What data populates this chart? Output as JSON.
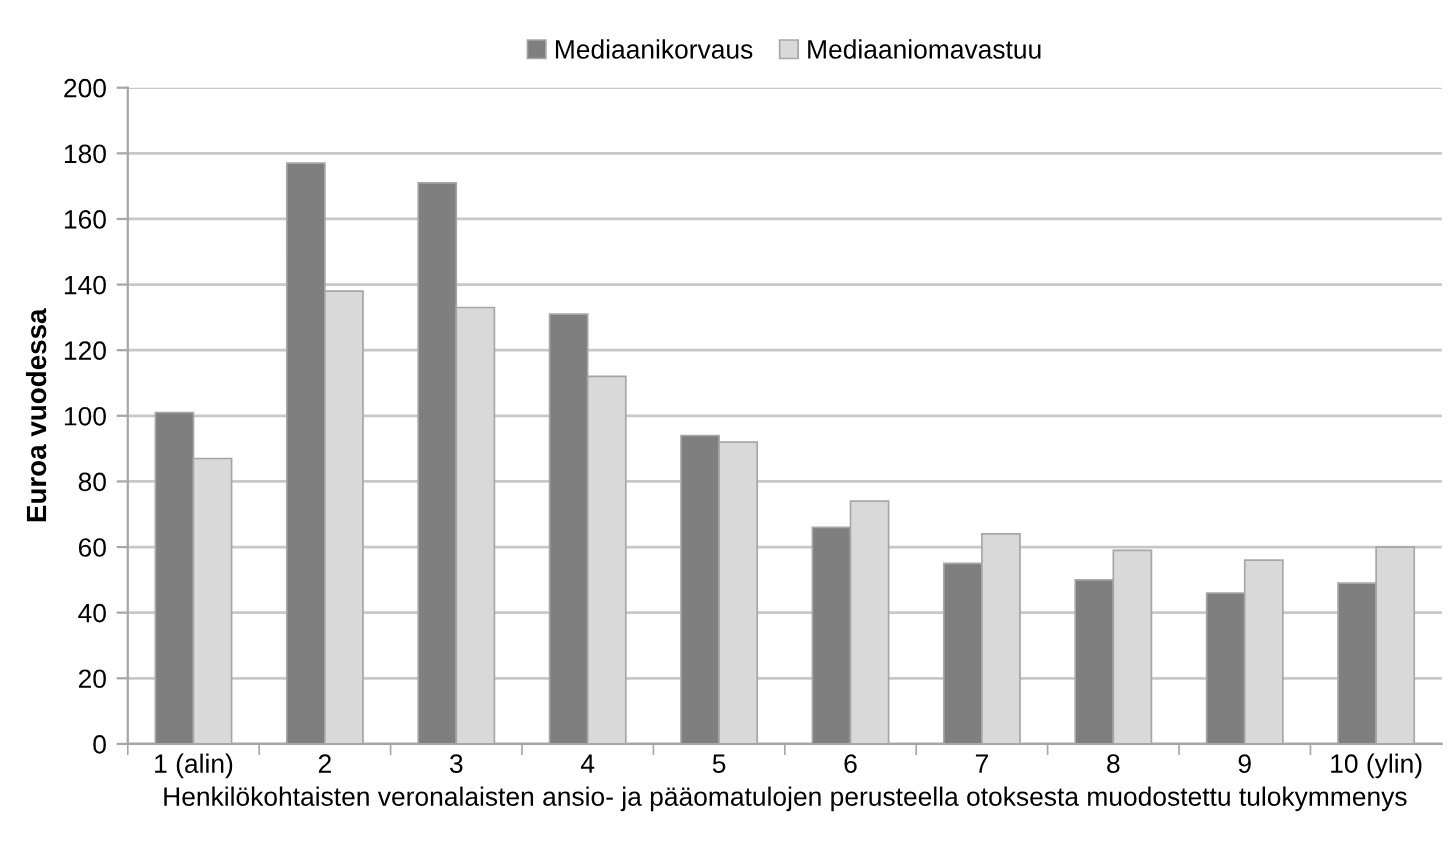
{
  "chart_data": {
    "type": "bar",
    "xlabel": "Henkilökohtaisten veronalaisten ansio- ja pääomatulojen perusteella otoksesta muodostettu tulokymmenys",
    "ylabel": "Euroa vuodessa",
    "categories": [
      "1 (alin)",
      "2",
      "3",
      "4",
      "5",
      "6",
      "7",
      "8",
      "9",
      "10 (ylin)"
    ],
    "series": [
      {
        "name": "Mediaanikorvaus",
        "color": "#7f7f7f",
        "values": [
          101,
          177,
          171,
          131,
          94,
          66,
          55,
          50,
          46,
          49
        ]
      },
      {
        "name": "Mediaaniomavastuu",
        "color": "#d9d9d9",
        "values": [
          87,
          138,
          133,
          112,
          92,
          74,
          64,
          59,
          56,
          60
        ]
      }
    ],
    "ylim": [
      0,
      200
    ],
    "yticks": [
      0,
      20,
      40,
      60,
      80,
      100,
      120,
      140,
      160,
      180,
      200
    ],
    "grid": "y",
    "legend": "top"
  }
}
